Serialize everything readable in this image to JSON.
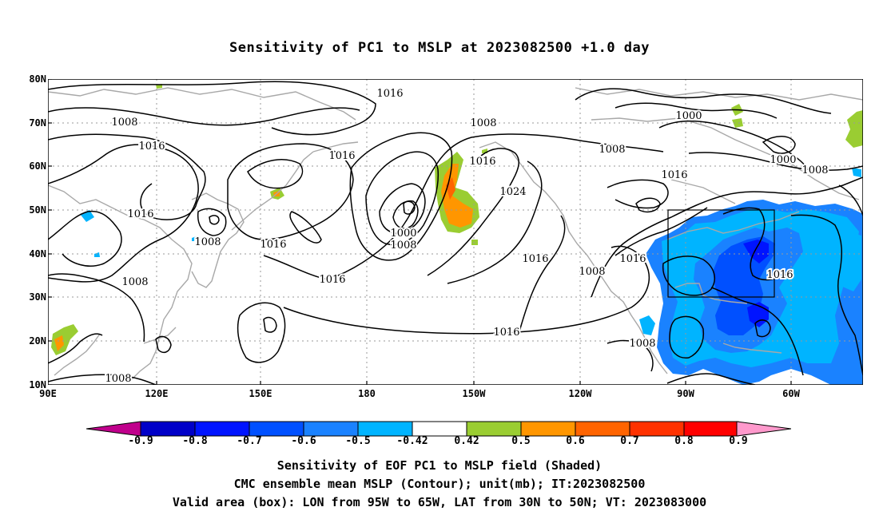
{
  "title": "Sensitivity of PC1 to MSLP at 2023082500 +1.0 day",
  "lat_labels": [
    "80N",
    "70N",
    "60N",
    "50N",
    "40N",
    "30N",
    "20N",
    "10N"
  ],
  "lon_labels": [
    "90E",
    "120E",
    "150E",
    "180",
    "150W",
    "120W",
    "90W",
    "60W"
  ],
  "contour_labels": [
    "1016",
    "1008",
    "1016",
    "1016",
    "1016",
    "1008",
    "1008",
    "1016",
    "1000",
    "1008",
    "1016",
    "1024",
    "1016",
    "1016",
    "1008",
    "1016",
    "1008",
    "1016",
    "1000",
    "1000",
    "1008",
    "1016",
    "1008",
    "1016",
    "1008",
    "1008"
  ],
  "colorbar": {
    "labels": [
      "-0.9",
      "-0.8",
      "-0.7",
      "-0.6",
      "-0.5",
      "-0.42",
      "0.42",
      "0.5",
      "0.6",
      "0.7",
      "0.8",
      "0.9"
    ],
    "colors": [
      "#c0008c",
      "#0000c8",
      "#0014ff",
      "#0050ff",
      "#1a82ff",
      "#00b4ff",
      "#ffffff",
      "#9acd32",
      "#ff9600",
      "#ff6400",
      "#ff3200",
      "#ff0000",
      "#ff99cc"
    ]
  },
  "valid_box": {
    "lon_west": -95,
    "lon_east": -65,
    "lat_south": 30,
    "lat_north": 50
  },
  "footer": {
    "line1": "Sensitivity of EOF PC1 to MSLP field (Shaded)",
    "line2": "CMC ensemble mean MSLP (Contour); unit(mb); IT:2023082500",
    "line3": "Valid area (box): LON from 95W to 65W, LAT from 30N to 50N; VT: 2023083000"
  }
}
